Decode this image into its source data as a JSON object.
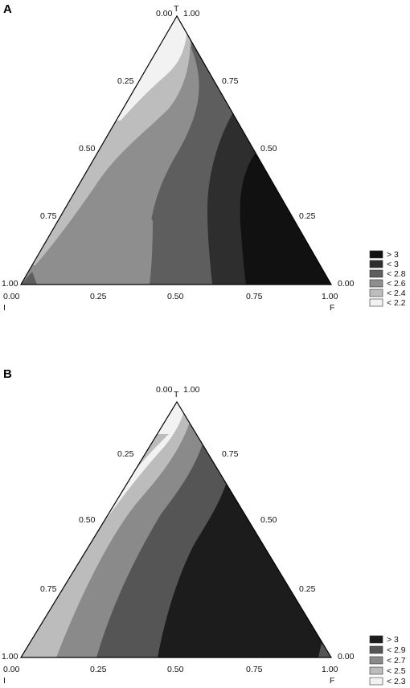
{
  "chart_data": [
    {
      "type": "ternary-contour",
      "panel": "A",
      "vertices": {
        "top": "T",
        "left": "I",
        "right": "F"
      },
      "tick_labels": {
        "left_edge": [
          "0.00",
          "0.25",
          "0.50",
          "0.75",
          "1.00"
        ],
        "right_edge": [
          "1.00",
          "0.75",
          "0.50",
          "0.25",
          "0.00"
        ],
        "bottom_edge": [
          "0.00",
          "0.25",
          "0.50",
          "0.75",
          "1.00"
        ]
      },
      "legend": [
        {
          "label": "> 3",
          "color": "#111111"
        },
        {
          "label": "< 3",
          "color": "#2e2e2e"
        },
        {
          "label": "< 2.8",
          "color": "#5e5e5e"
        },
        {
          "label": "< 2.6",
          "color": "#8e8e8e"
        },
        {
          "label": "< 2.4",
          "color": "#bdbdbd"
        },
        {
          "label": "< 2.2",
          "color": "#f2f2f2"
        }
      ]
    },
    {
      "type": "ternary-contour",
      "panel": "B",
      "vertices": {
        "top": "T",
        "left": "I",
        "right": "F"
      },
      "tick_labels": {
        "left_edge": [
          "0.00",
          "0.25",
          "0.50",
          "0.75",
          "1.00"
        ],
        "right_edge": [
          "1.00",
          "0.75",
          "0.50",
          "0.25",
          "0.00"
        ],
        "bottom_edge": [
          "0.00",
          "0.25",
          "0.50",
          "0.75",
          "1.00"
        ]
      },
      "legend": [
        {
          "label": "> 3",
          "color": "#1c1c1c"
        },
        {
          "label": "< 2.9",
          "color": "#555555"
        },
        {
          "label": "< 2.7",
          "color": "#8a8a8a"
        },
        {
          "label": "< 2.5",
          "color": "#bcbcbc"
        },
        {
          "label": "< 2.3",
          "color": "#f2f2f2"
        }
      ]
    }
  ]
}
